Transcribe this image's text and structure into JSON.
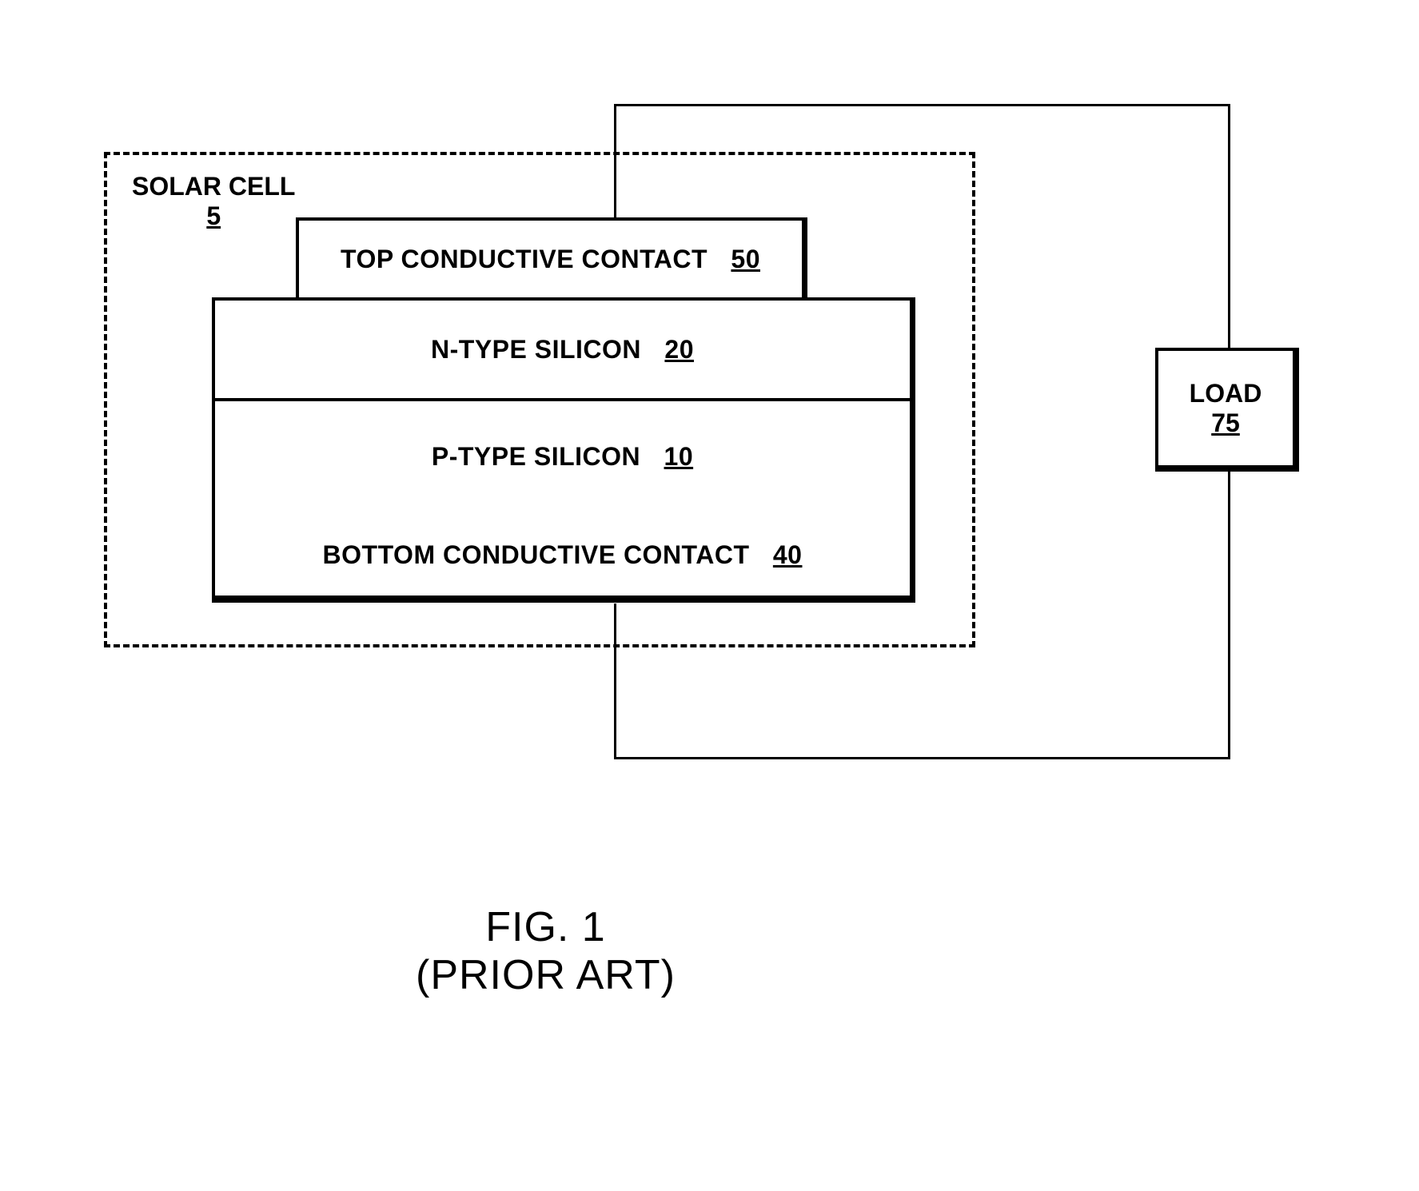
{
  "solar_cell": {
    "label": "SOLAR CELL",
    "ref": "5",
    "boundary_style": "dashed",
    "boundary_color": "#000000"
  },
  "layers": {
    "top_contact": {
      "text": "TOP CONDUCTIVE CONTACT",
      "ref": "50",
      "border_color": "#000000",
      "background_color": "#ffffff",
      "border_width_normal": 4,
      "border_width_right": 7
    },
    "n_type": {
      "text": "N-TYPE SILICON",
      "ref": "20",
      "border_color": "#000000",
      "background_color": "#ffffff"
    },
    "p_type": {
      "text": "P-TYPE SILICON",
      "ref": "10",
      "border_color": "#000000",
      "background_color": "#ffffff"
    },
    "bottom_contact": {
      "text": "BOTTOM CONDUCTIVE CONTACT",
      "ref": "40",
      "border_color": "#000000",
      "background_color": "#ffffff",
      "border_width_bottom": 9
    }
  },
  "load": {
    "label": "LOAD",
    "ref": "75",
    "border_color": "#000000",
    "background_color": "#ffffff",
    "border_width_normal": 4,
    "border_width_shadow": 8
  },
  "wires": {
    "color": "#000000",
    "width": 3
  },
  "caption": {
    "fig": "FIG. 1",
    "subtitle": "(PRIOR ART)"
  },
  "styling": {
    "page_background": "#ffffff",
    "text_color": "#000000",
    "label_fontsize": 32,
    "caption_fontsize": 52,
    "font_family": "Arial, Helvetica, sans-serif"
  }
}
